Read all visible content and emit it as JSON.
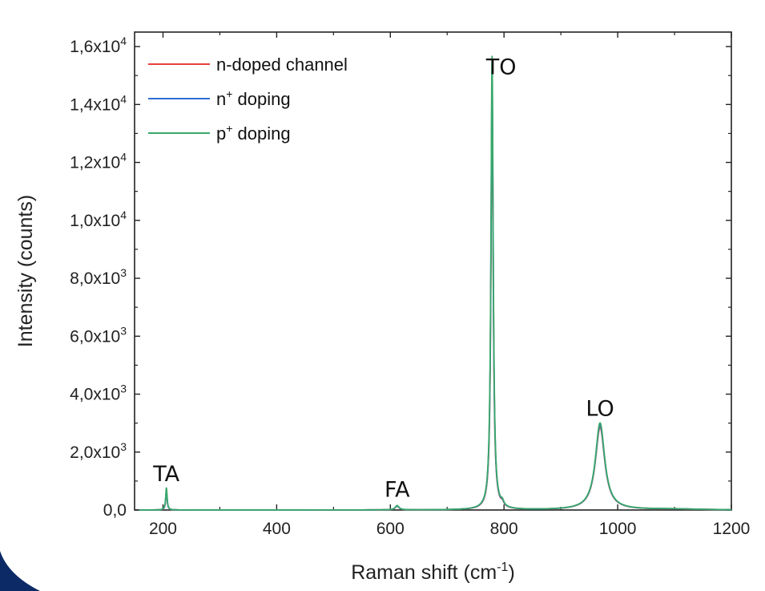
{
  "chart_data": {
    "type": "line",
    "xlabel": {
      "base": "Raman shift (cm",
      "sup": "-1",
      "tail": ")"
    },
    "ylabel": "Intensity (counts)",
    "xlim": [
      150,
      1200
    ],
    "ylim": [
      0,
      16500
    ],
    "xticks": [
      {
        "v": 200,
        "label": "200"
      },
      {
        "v": 400,
        "label": "400"
      },
      {
        "v": 600,
        "label": "600"
      },
      {
        "v": 800,
        "label": "800"
      },
      {
        "v": 1000,
        "label": "1000"
      },
      {
        "v": 1200,
        "label": "1200"
      }
    ],
    "yticks": [
      {
        "v": 0,
        "plain": "0,0"
      },
      {
        "v": 2000,
        "mant": "2,0x10",
        "exp": "3"
      },
      {
        "v": 4000,
        "mant": "4,0x10",
        "exp": "3"
      },
      {
        "v": 6000,
        "mant": "6,0x10",
        "exp": "3"
      },
      {
        "v": 8000,
        "mant": "8,0x10",
        "exp": "3"
      },
      {
        "v": 10000,
        "mant": "1,0x10",
        "exp": "4"
      },
      {
        "v": 12000,
        "mant": "1,2x10",
        "exp": "4"
      },
      {
        "v": 14000,
        "mant": "1,4x10",
        "exp": "4"
      },
      {
        "v": 16000,
        "mant": "1,6x10",
        "exp": "4"
      }
    ],
    "legend": {
      "position": "top-left"
    },
    "series": [
      {
        "name": "n-doped channel",
        "name_base": "n-doped channel",
        "name_sup": "",
        "color": "#e8413a",
        "peaks": [
          {
            "x0": 206,
            "amp": 650,
            "w": 1.5
          },
          {
            "x0": 612,
            "amp": 130,
            "w": 4
          },
          {
            "x0": 779,
            "amp": 14100,
            "w": 2.4
          },
          {
            "x0": 797,
            "amp": 120,
            "w": 3
          },
          {
            "x0": 969,
            "amp": 2850,
            "w": 10
          },
          {
            "x0": 1095,
            "amp": 25,
            "w": 60
          }
        ]
      },
      {
        "name": "n+ doping",
        "name_base": "n",
        "name_sup": "+",
        "name_tail": " doping",
        "color": "#2f6fd6",
        "peaks": [
          {
            "x0": 206,
            "amp": 680,
            "w": 1.5
          },
          {
            "x0": 612,
            "amp": 135,
            "w": 4
          },
          {
            "x0": 779,
            "amp": 14800,
            "w": 2.4
          },
          {
            "x0": 797,
            "amp": 130,
            "w": 3
          },
          {
            "x0": 969,
            "amp": 2920,
            "w": 10
          },
          {
            "x0": 1095,
            "amp": 28,
            "w": 60
          }
        ]
      },
      {
        "name": "p+ doping",
        "name_base": "p",
        "name_sup": "+",
        "name_tail": " doping",
        "color": "#3aa86b",
        "peaks": [
          {
            "x0": 206,
            "amp": 760,
            "w": 1.5
          },
          {
            "x0": 612,
            "amp": 150,
            "w": 4
          },
          {
            "x0": 779,
            "amp": 15650,
            "w": 2.4
          },
          {
            "x0": 797,
            "amp": 140,
            "w": 3
          },
          {
            "x0": 969,
            "amp": 3000,
            "w": 10
          },
          {
            "x0": 1095,
            "amp": 30,
            "w": 60
          }
        ]
      }
    ],
    "annotations": [
      {
        "text": "TA",
        "x": 206,
        "y": 1000
      },
      {
        "text": "FA",
        "x": 612,
        "y": 450
      },
      {
        "text": "TO",
        "x": 795,
        "y": 15050
      },
      {
        "text": "LO",
        "x": 969,
        "y": 3250
      }
    ]
  },
  "decor": {
    "corner_color": "#0b2a66"
  }
}
